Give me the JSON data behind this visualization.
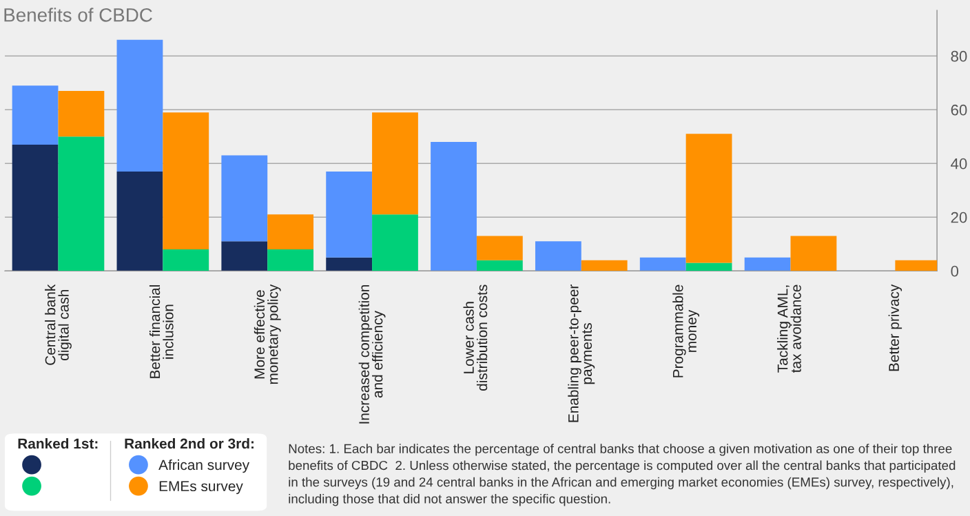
{
  "chart_data": [
    {
      "type": "bar",
      "title": "Benefits of CBDC",
      "stacked": true,
      "categories": [
        "Central bank\ndigital cash",
        "Better financial\ninclusion",
        "More effective\nmonetary policy",
        "Increased competition\nand efficiency",
        "Lower cash\ndistribution costs",
        "Enabling peer-to-peer\npayments",
        "Programmable\nmoney",
        "Tackling AML,\ntax avoidance",
        "Better privacy"
      ],
      "series": [
        {
          "color": "#172d5e",
          "values": [
            47,
            37,
            11,
            5,
            0,
            0,
            0,
            0,
            0
          ]
        },
        {
          "name": "African survey",
          "color": "#5592ff",
          "values": [
            22,
            49,
            32,
            32,
            48,
            11,
            5,
            5,
            0
          ]
        }
      ],
      "ylim": [
        0,
        97
      ],
      "yticks": [
        0,
        20,
        40,
        60,
        80
      ],
      "grid": "y",
      "legend": "bottom left",
      "tick_labels": "x",
      "annotations": [
        "Ranked 1st:",
        "Ranked 2nd or 3rd:",
        "Notes: 1. Each bar indicates the percentage of central banks that choose a given motivation as one of their top three benefits of CBDC  2. Unless otherwise stated, the percentage is computed over all the central banks that participated in the surveys (19 and 24 central banks in the African and emerging market economies (EMEs) survey, respectively), including those that did not answer the specific question."
      ]
    },
    {
      "type": "bar",
      "stacked": true,
      "tick_labels": "y",
      "series": [
        {
          "color": "#00d079",
          "values": [
            50,
            8,
            8,
            21,
            4,
            0,
            3,
            0,
            0
          ]
        },
        {
          "name": "EMEs survey",
          "color": "#ff9100",
          "values": [
            17,
            51,
            13,
            38,
            9,
            4,
            48,
            13,
            4
          ]
        }
      ],
      "ylim": [
        0,
        97
      ],
      "yticks": [
        0,
        20,
        40,
        60,
        80
      ]
    }
  ]
}
